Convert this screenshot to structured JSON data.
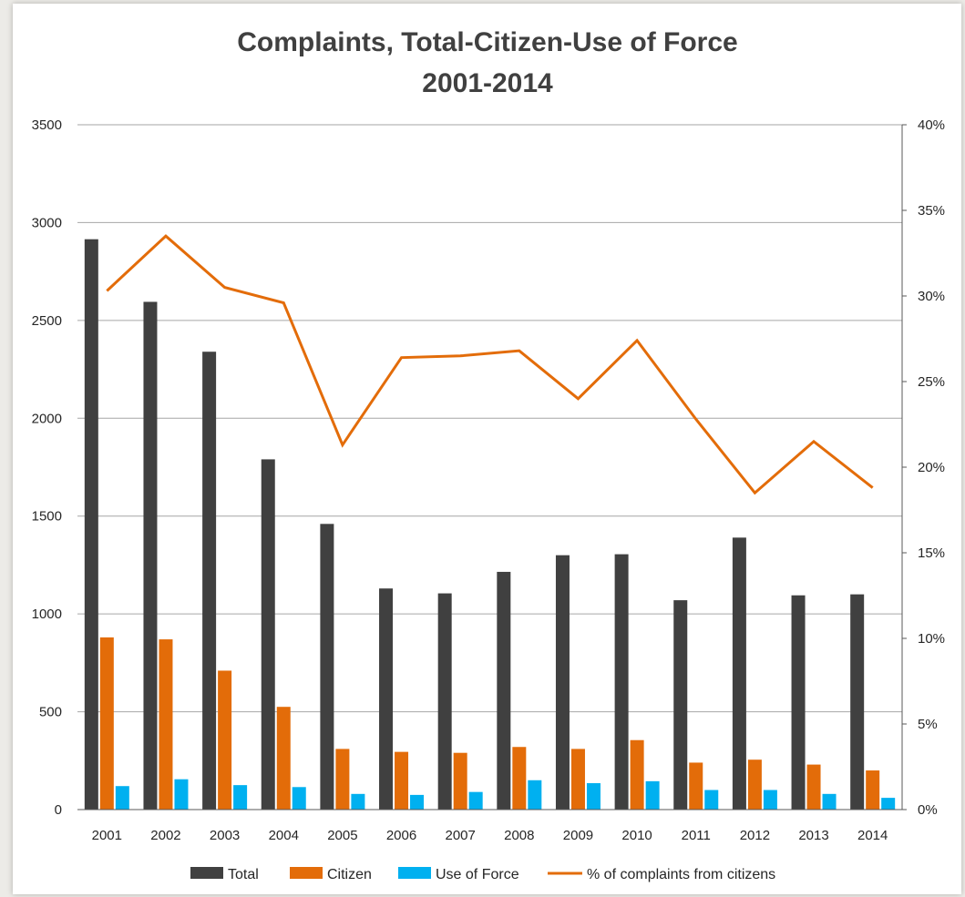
{
  "chart_data": {
    "type": "bar",
    "title": "Complaints, Total-Citizen-Use of Force",
    "subtitle": "2001-2014",
    "categories": [
      "2001",
      "2002",
      "2003",
      "2004",
      "2005",
      "2006",
      "2007",
      "2008",
      "2009",
      "2010",
      "2011",
      "2012",
      "2013",
      "2014"
    ],
    "series": [
      {
        "name": "Total",
        "type": "bar",
        "axis": "left",
        "color": "#404040",
        "values": [
          2915,
          2595,
          2340,
          1790,
          1460,
          1130,
          1105,
          1215,
          1300,
          1305,
          1070,
          1390,
          1095,
          1100
        ]
      },
      {
        "name": "Citizen",
        "type": "bar",
        "axis": "left",
        "color": "#e36c09",
        "values": [
          880,
          870,
          710,
          525,
          310,
          295,
          290,
          320,
          310,
          355,
          240,
          255,
          230,
          200
        ]
      },
      {
        "name": "Use of Force",
        "type": "bar",
        "axis": "left",
        "color": "#00b0f0",
        "values": [
          120,
          155,
          125,
          115,
          80,
          75,
          90,
          150,
          135,
          145,
          100,
          100,
          80,
          60
        ]
      },
      {
        "name": "% of complaints from citizens",
        "type": "line",
        "axis": "right",
        "color": "#e36c09",
        "values": [
          30.3,
          33.5,
          30.5,
          29.6,
          21.3,
          26.4,
          26.5,
          26.8,
          24.0,
          27.4,
          22.8,
          18.5,
          21.5,
          18.8
        ]
      }
    ],
    "y_left": {
      "min": 0,
      "max": 3500,
      "ticks": [
        "0",
        "500",
        "1000",
        "1500",
        "2000",
        "2500",
        "3000",
        "3500"
      ]
    },
    "y_right": {
      "min": 0,
      "max": 40,
      "ticks": [
        "0%",
        "5%",
        "10%",
        "15%",
        "20%",
        "25%",
        "30%",
        "35%",
        "40%"
      ]
    },
    "grid": true,
    "legend_position": "bottom"
  }
}
